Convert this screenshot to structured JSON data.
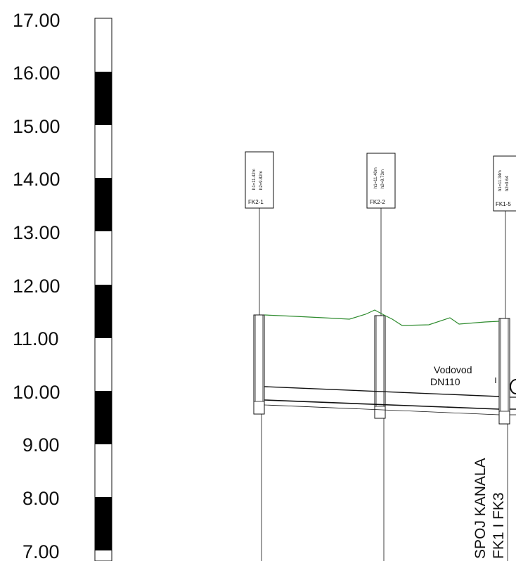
{
  "elevation_scale": {
    "labels": [
      "17.00",
      "16.00",
      "15.00",
      "14.00",
      "13.00",
      "12.00",
      "11.00",
      "10.00",
      "9.00",
      "8.00",
      "7.00"
    ]
  },
  "manholes": [
    {
      "id": "FK2-1",
      "h1": "h1=11.42m",
      "h2": "h2=9.82m"
    },
    {
      "id": "FK2-2",
      "h1": "h1=11.40m",
      "h2": "h2=9.73m"
    },
    {
      "id": "FK1-5",
      "h1": "h1=11.34m",
      "h2": "h2=9.64"
    }
  ],
  "annotations": {
    "water_main_line1": "Vodovod",
    "water_main_line2": "DN110",
    "junction_line1": "SPOJ KANALA",
    "junction_line2": "FK1 I FK3"
  },
  "colors": {
    "terrain": "#2e8b2e",
    "ink": "#111111",
    "scale_fill": "#000000"
  }
}
